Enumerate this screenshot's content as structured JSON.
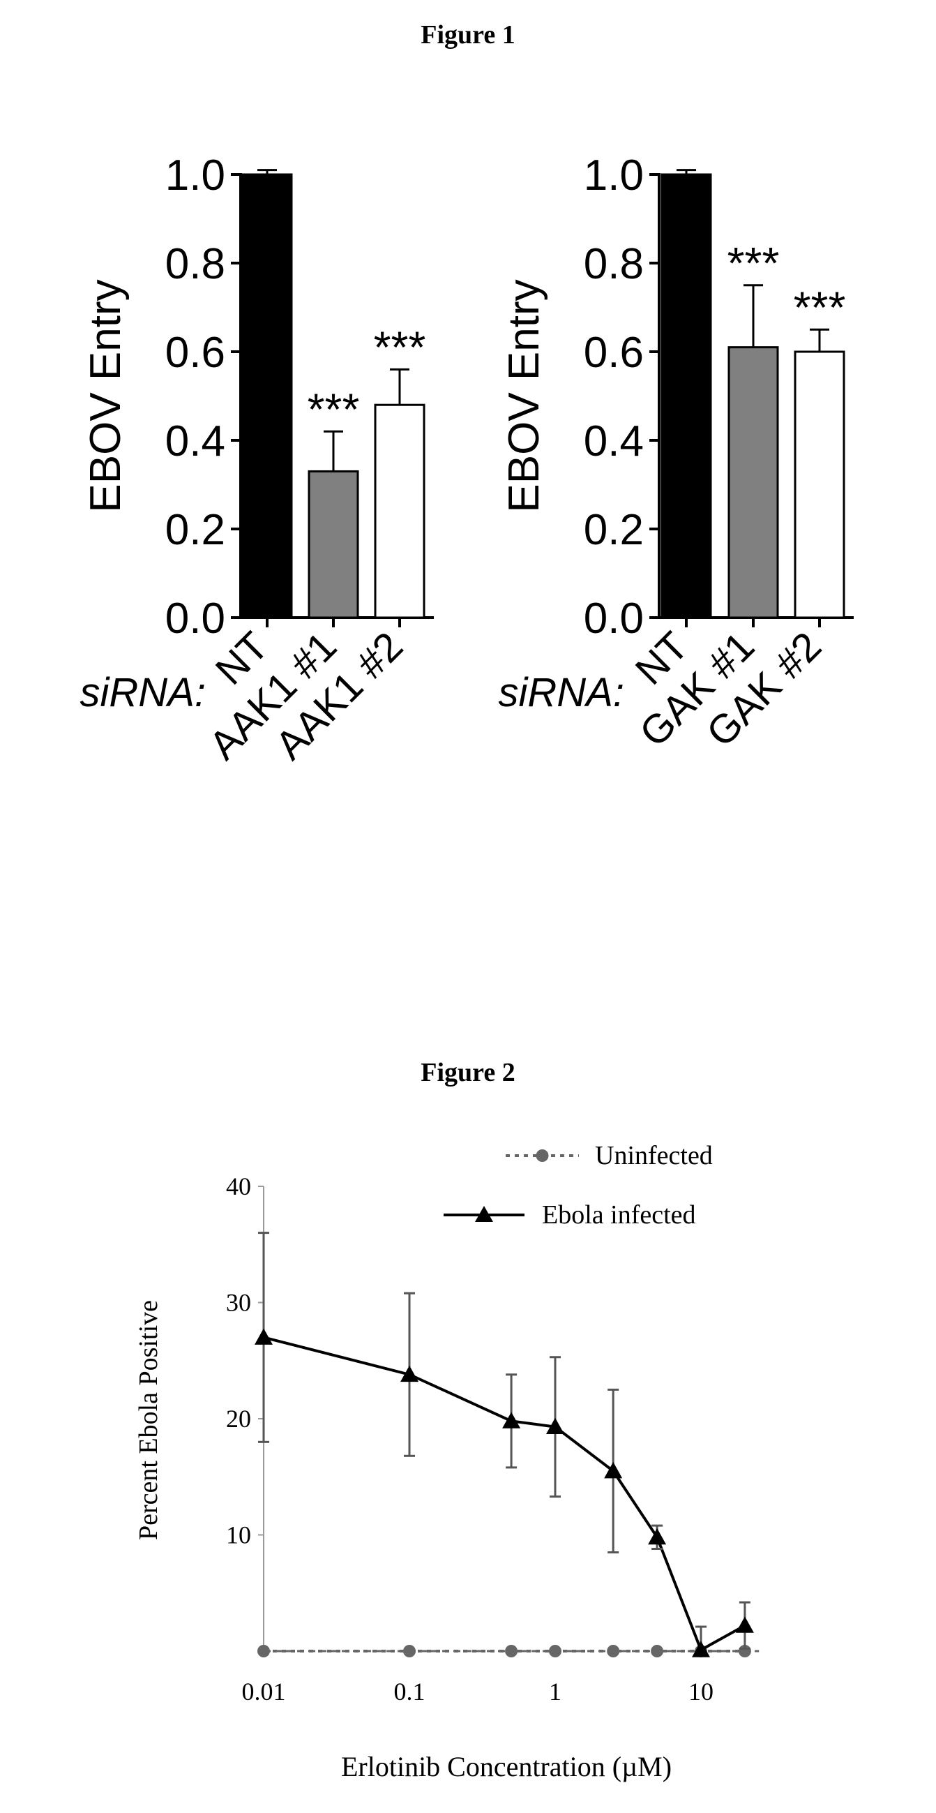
{
  "figure1": {
    "title": "Figure 1",
    "panels": [
      {
        "type": "bar",
        "ylabel": "EBOV Entry",
        "xprefix": "siRNA:",
        "categories": [
          "NT",
          "AAK1 #1",
          "AAK1 #2"
        ],
        "values": [
          1.0,
          0.33,
          0.48
        ],
        "errors": [
          0.01,
          0.09,
          0.08
        ],
        "significance": [
          "",
          "***",
          "***"
        ],
        "fills": [
          "#000000",
          "#808080",
          "#ffffff"
        ],
        "ylim": [
          0,
          1.0
        ],
        "yticks": [
          "0.0",
          "0.2",
          "0.4",
          "0.6",
          "0.8",
          "1.0"
        ]
      },
      {
        "type": "bar",
        "ylabel": "EBOV Entry",
        "xprefix": "siRNA:",
        "categories": [
          "NT",
          "GAK #1",
          "GAK #2"
        ],
        "values": [
          1.0,
          0.61,
          0.6
        ],
        "errors": [
          0.01,
          0.14,
          0.05
        ],
        "significance": [
          "",
          "***",
          "***"
        ],
        "fills": [
          "#000000",
          "#808080",
          "#ffffff"
        ],
        "ylim": [
          0,
          1.0
        ],
        "yticks": [
          "0.0",
          "0.2",
          "0.4",
          "0.6",
          "0.8",
          "1.0"
        ]
      }
    ]
  },
  "figure2": {
    "title": "Figure 2",
    "chart_data": {
      "type": "line",
      "xscale": "log",
      "xlabel": "Erlotinib Concentration (µM)",
      "ylabel": "Percent Ebola Positive",
      "xticks": [
        "0.01",
        "0.1",
        "1",
        "10"
      ],
      "yticks": [
        "10",
        "20",
        "30",
        "40"
      ],
      "ylim": [
        0,
        40
      ],
      "xlim": [
        0.01,
        25
      ],
      "legend_position": "top-right",
      "series": [
        {
          "name": "Uninfected",
          "marker": "circle",
          "line": "dotted",
          "color": "#666666",
          "x": [
            0.01,
            0.1,
            0.5,
            1,
            2.5,
            5,
            10,
            20
          ],
          "y": [
            0,
            0,
            0,
            0,
            0,
            0,
            0,
            0
          ],
          "err": [
            0,
            0,
            0,
            0,
            0,
            0,
            0,
            0
          ]
        },
        {
          "name": "Ebola infected",
          "marker": "triangle",
          "line": "solid",
          "color": "#000000",
          "x": [
            0.01,
            0.1,
            0.5,
            1,
            2.5,
            5,
            10,
            20
          ],
          "y": [
            27,
            23.8,
            19.8,
            19.3,
            15.5,
            9.8,
            0.1,
            2.2
          ],
          "err": [
            9,
            7,
            4,
            6,
            7,
            1,
            2,
            2
          ]
        }
      ]
    }
  }
}
